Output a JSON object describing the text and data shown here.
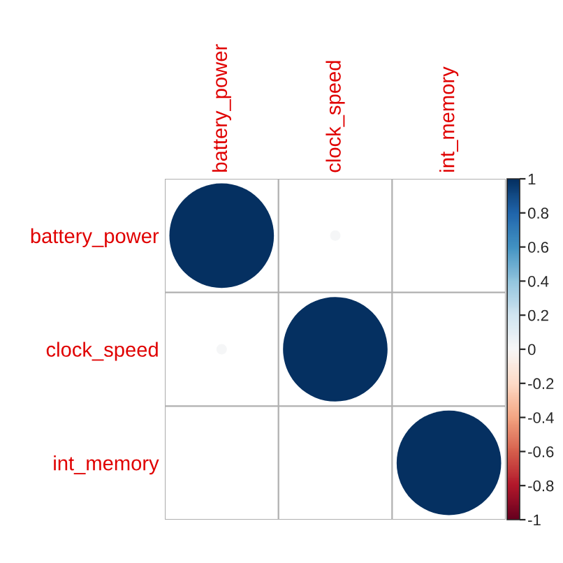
{
  "chart_data": {
    "type": "heatmap",
    "marker": "circle",
    "categories": [
      "battery_power",
      "clock_speed",
      "int_memory"
    ],
    "y_categories": [
      "battery_power",
      "clock_speed",
      "int_memory"
    ],
    "cells": [
      [
        1,
        0.01,
        0.0
      ],
      [
        0.01,
        1,
        0.0
      ],
      [
        0.0,
        0.0,
        1
      ]
    ],
    "clim": [
      -1,
      1
    ],
    "cticks": [
      -1,
      -0.8,
      -0.6,
      -0.4,
      -0.2,
      0,
      0.2,
      0.4,
      0.6,
      0.8,
      1
    ],
    "grid": true
  }
}
